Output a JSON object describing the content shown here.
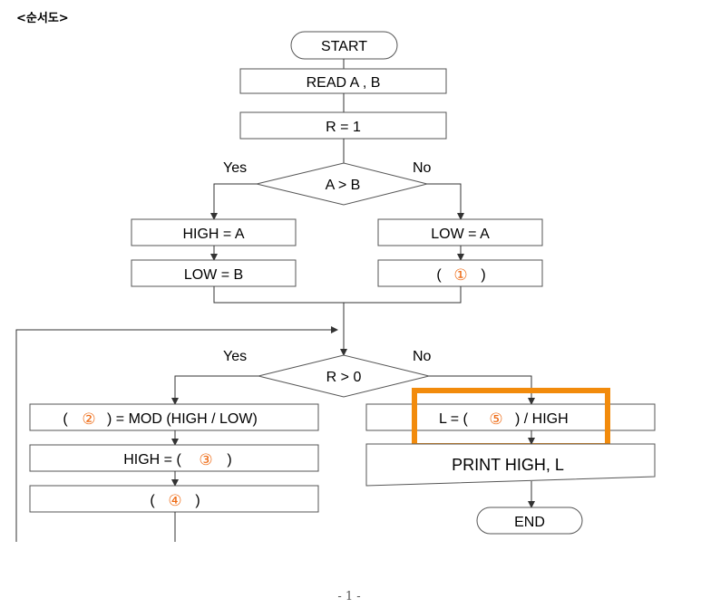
{
  "header": {
    "title": "<순서도>"
  },
  "flowchart": {
    "start": "START",
    "read": "READ A , B",
    "r_init": "R = 1",
    "cond1": "A > B",
    "cond1_yes": "Yes",
    "cond1_no": "No",
    "high_a": "HIGH = A",
    "low_b": "LOW = B",
    "low_a": "LOW = A",
    "blank1": {
      "open": "(",
      "num": "①",
      "close": ")"
    },
    "cond2": "R > 0",
    "cond2_yes": "Yes",
    "cond2_no": "No",
    "blank2": {
      "open": "(",
      "num": "②",
      "rest": ") = MOD (HIGH / LOW)"
    },
    "blank3": {
      "prefix": "HIGH = (",
      "num": "③",
      "close": ")"
    },
    "blank4": {
      "open": "(",
      "num": "④",
      "close": ")"
    },
    "blank5": {
      "prefix": "L = (",
      "num": "⑤",
      "rest": ") / HIGH"
    },
    "print": "PRINT HIGH, L",
    "end": "END"
  },
  "highlight_color": "#f28b0c",
  "footer": {
    "page": "- 1 -"
  }
}
